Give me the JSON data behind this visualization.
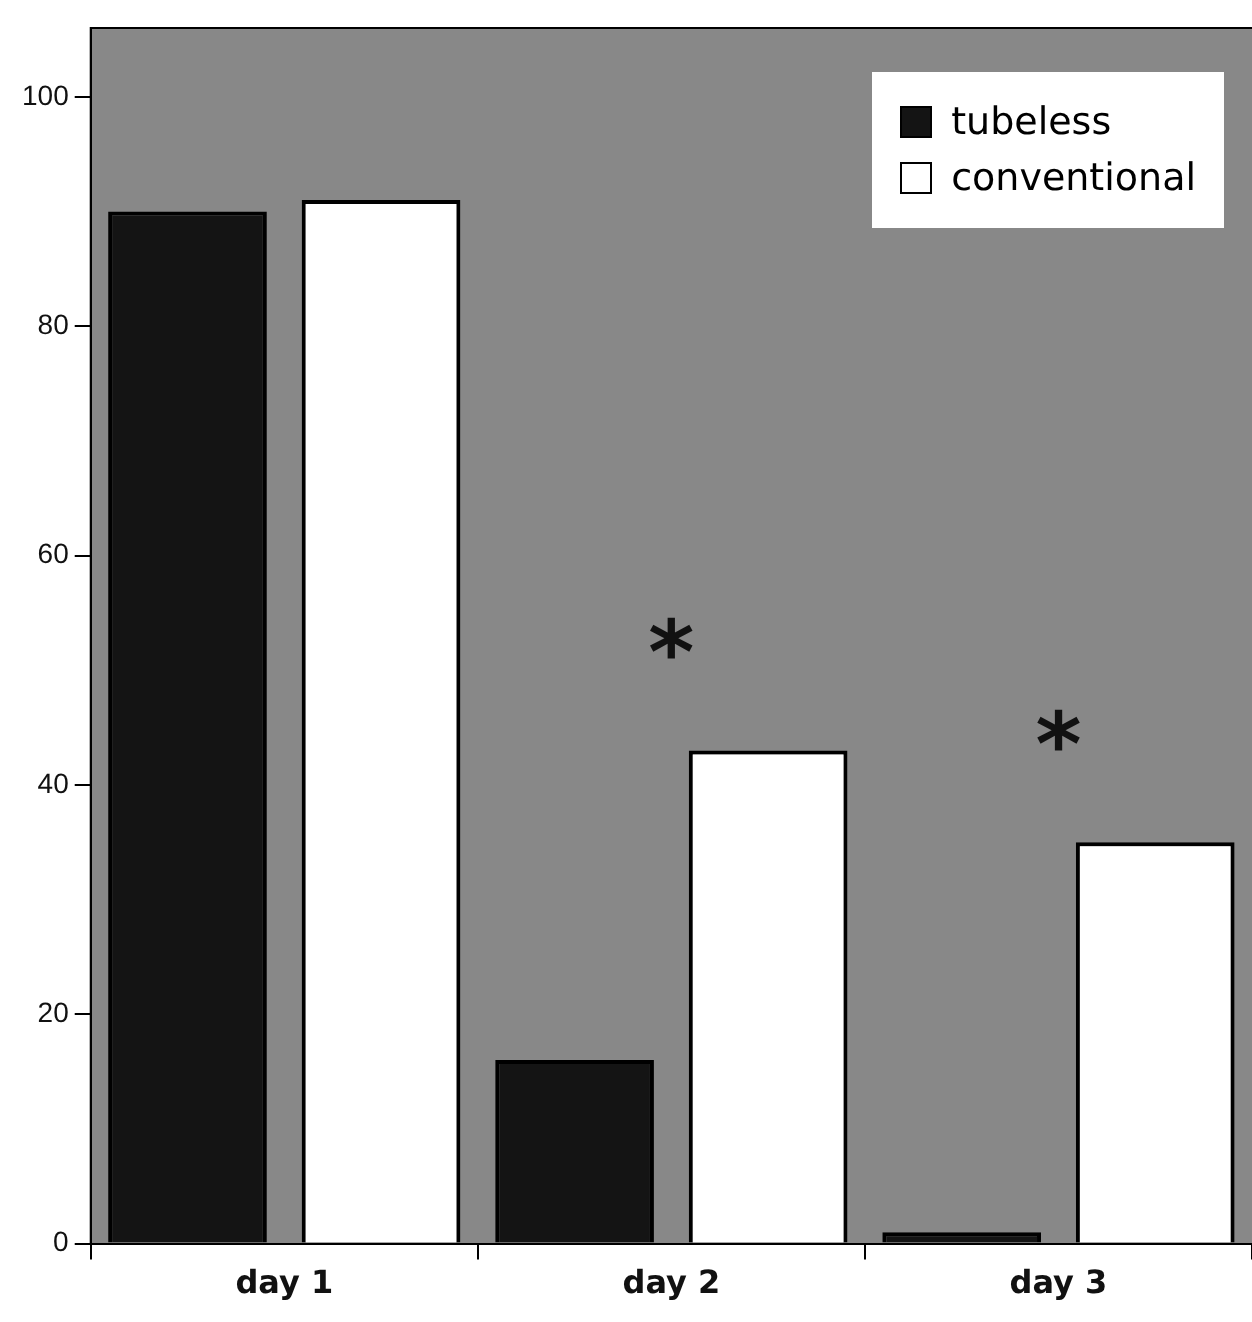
{
  "chart_data": {
    "type": "bar",
    "categories": [
      "day 1",
      "day 2",
      "day 3"
    ],
    "series": [
      {
        "name": "tubeless",
        "color": "#141414",
        "values": [
          90,
          16,
          1
        ]
      },
      {
        "name": "conventional",
        "color": "#ffffff",
        "values": [
          91,
          43,
          35
        ]
      }
    ],
    "ylim": [
      0,
      106
    ],
    "yticks": [
      0,
      20,
      40,
      60,
      80,
      100
    ],
    "grid": false,
    "legend": "top right",
    "annotations": [
      "*",
      "*"
    ]
  }
}
